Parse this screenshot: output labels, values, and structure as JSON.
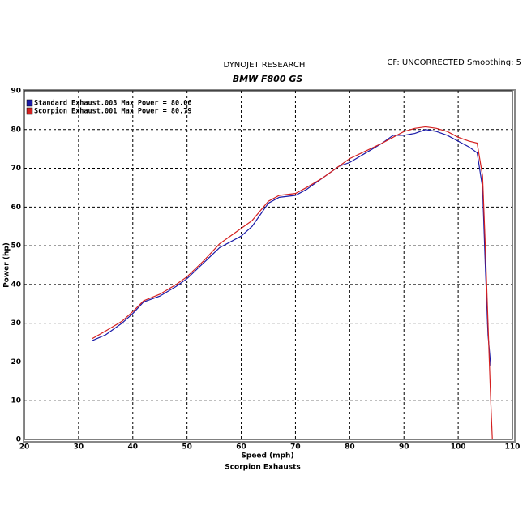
{
  "chart_data": {
    "type": "line",
    "title": "DYNOJET RESEARCH",
    "subtitle": "BMW F800 GS",
    "annotation": "CF: UNCORRECTED  Smoothing: 5",
    "xlabel": "Speed (mph)",
    "ylabel": "Power (hp)",
    "caption": "Scorpion Exhausts",
    "x": [
      32.5,
      35,
      38,
      40,
      42,
      45,
      48,
      50,
      53,
      56,
      58,
      60,
      62,
      65,
      67,
      70,
      72,
      75,
      78,
      80,
      83,
      86,
      88,
      90,
      92,
      94,
      96,
      98,
      100,
      102,
      103.5,
      104.5,
      105,
      105.5,
      106,
      106.3
    ],
    "series": [
      {
        "name": "Standard Exhaust.003 Max Power = 80.06",
        "color": "#1a1aa8",
        "values": [
          25.5,
          27,
          30,
          32.5,
          35.5,
          37,
          39.5,
          41.5,
          45.5,
          49.5,
          51,
          52.5,
          55,
          61,
          62.5,
          63,
          64.5,
          67.5,
          70.5,
          71.5,
          74,
          76.5,
          78.5,
          78.5,
          79,
          80,
          79.5,
          78.5,
          77,
          75.5,
          74,
          65,
          45,
          27,
          19,
          null
        ]
      },
      {
        "name": "Scorpion Exhaust.001 Max Power = 80.79",
        "color": "#d42020",
        "values": [
          26,
          28,
          30.5,
          33,
          35.8,
          37.5,
          40,
          42,
          46,
          50.5,
          52.5,
          54.5,
          56.5,
          61.5,
          63,
          63.5,
          65,
          67.5,
          70.5,
          72.5,
          74.5,
          76.5,
          78,
          79.5,
          80.3,
          80.7,
          80.3,
          79.5,
          78,
          77,
          76.5,
          68,
          50,
          30,
          10,
          0
        ]
      }
    ],
    "xlim": [
      20,
      110
    ],
    "xticks": [
      20,
      30,
      40,
      50,
      60,
      70,
      80,
      90,
      100,
      110
    ],
    "ylim": [
      0,
      90
    ],
    "yticks": [
      0,
      10,
      20,
      30,
      40,
      50,
      60,
      70,
      80,
      90
    ],
    "grid": true,
    "legend": "upper left"
  }
}
